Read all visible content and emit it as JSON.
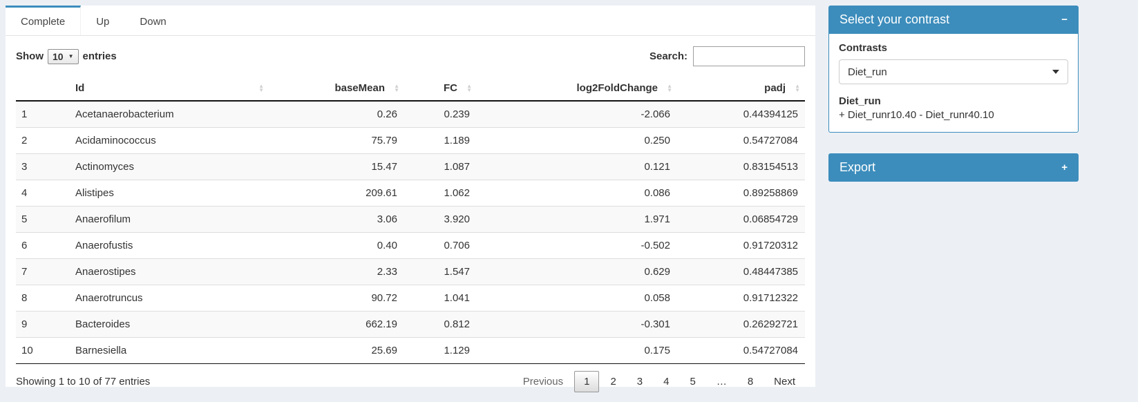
{
  "tabs": {
    "complete": "Complete",
    "up": "Up",
    "down": "Down"
  },
  "controls": {
    "show": "Show",
    "page_length": "10",
    "entries": "entries",
    "search_label": "Search:",
    "search_value": ""
  },
  "table": {
    "headers": {
      "id": "Id",
      "basemean": "baseMean",
      "fc": "FC",
      "log2fc": "log2FoldChange",
      "padj": "padj"
    },
    "rows": [
      [
        "1",
        "Acetanaerobacterium",
        "0.26",
        "0.239",
        "-2.066",
        "0.44394125"
      ],
      [
        "2",
        "Acidaminococcus",
        "75.79",
        "1.189",
        "0.250",
        "0.54727084"
      ],
      [
        "3",
        "Actinomyces",
        "15.47",
        "1.087",
        "0.121",
        "0.83154513"
      ],
      [
        "4",
        "Alistipes",
        "209.61",
        "1.062",
        "0.086",
        "0.89258869"
      ],
      [
        "5",
        "Anaerofilum",
        "3.06",
        "3.920",
        "1.971",
        "0.06854729"
      ],
      [
        "6",
        "Anaerofustis",
        "0.40",
        "0.706",
        "-0.502",
        "0.91720312"
      ],
      [
        "7",
        "Anaerostipes",
        "2.33",
        "1.547",
        "0.629",
        "0.48447385"
      ],
      [
        "8",
        "Anaerotruncus",
        "90.72",
        "1.041",
        "0.058",
        "0.91712322"
      ],
      [
        "9",
        "Bacteroides",
        "662.19",
        "0.812",
        "-0.301",
        "0.26292721"
      ],
      [
        "10",
        "Barnesiella",
        "25.69",
        "1.129",
        "0.175",
        "0.54727084"
      ]
    ],
    "info": "Showing 1 to 10 of 77 entries",
    "pagination": {
      "previous": "Previous",
      "p1": "1",
      "p2": "2",
      "p3": "3",
      "p4": "4",
      "p5": "5",
      "ellipsis": "…",
      "p8": "8",
      "next": "Next"
    }
  },
  "contrast_box": {
    "title": "Select your contrast",
    "collapse_icon": "−",
    "contrasts_label": "Contrasts",
    "selected": "Diet_run",
    "detail_name": "Diet_run",
    "detail_formula": "+ Diet_runr10.40 - Diet_runr40.10"
  },
  "export_box": {
    "title": "Export",
    "collapse_icon": "+"
  },
  "colors": {
    "primary": "#3c8dbc",
    "page_background": "#ecf0f5",
    "row_stripe": "#f9f9f9",
    "table_header_border": "#111111",
    "pagination_current_border": "#979797"
  }
}
